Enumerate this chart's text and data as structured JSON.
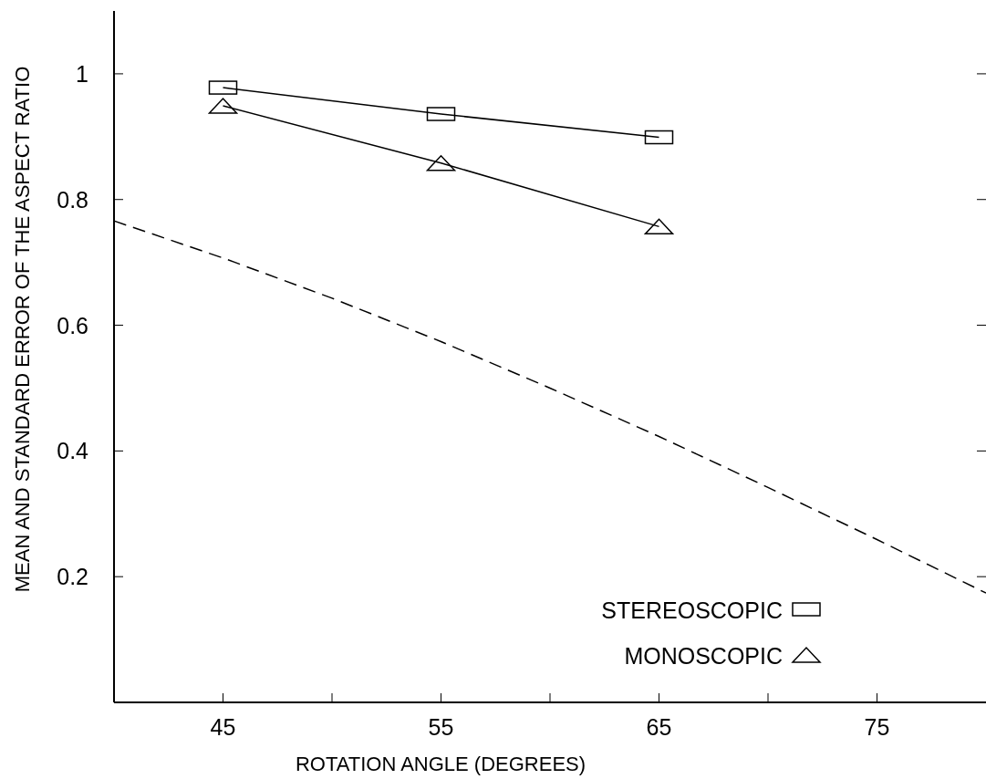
{
  "chart_data": {
    "type": "line",
    "xlabel": "ROTATION ANGLE (DEGREES)",
    "ylabel": "MEAN AND STANDARD ERROR OF THE ASPECT RATIO",
    "xlim": [
      40,
      80
    ],
    "xticks": [
      45,
      {
        "value": 50,
        "label": null
      },
      55,
      {
        "value": 60,
        "label": null
      },
      65,
      {
        "value": 70,
        "label": null
      },
      75
    ],
    "ylim": [
      0,
      1.1
    ],
    "yticks": [
      0.2,
      0.4,
      0.6,
      0.8,
      1
    ],
    "legend": "bottom right",
    "grid": false,
    "series": [
      {
        "name": "STEREOSCOPIC",
        "color": "#000000",
        "x": [
          45,
          55,
          65
        ],
        "values": [
          0.978,
          0.936,
          0.899
        ],
        "marker": "square",
        "line_style": "solid"
      },
      {
        "name": "MONOSCOPIC",
        "color": "#000000",
        "x": [
          45,
          55,
          65
        ],
        "values": [
          0.949,
          0.858,
          0.757
        ],
        "marker": "triangle",
        "line_style": "solid"
      },
      {
        "color": "#000000",
        "x": [
          40,
          45,
          50,
          55,
          60,
          65,
          70,
          75,
          80
        ],
        "values": [
          0.766,
          0.707,
          0.643,
          0.574,
          0.5,
          0.423,
          0.342,
          0.259,
          0.174
        ],
        "marker": "none",
        "line_style": "dashed"
      }
    ]
  }
}
